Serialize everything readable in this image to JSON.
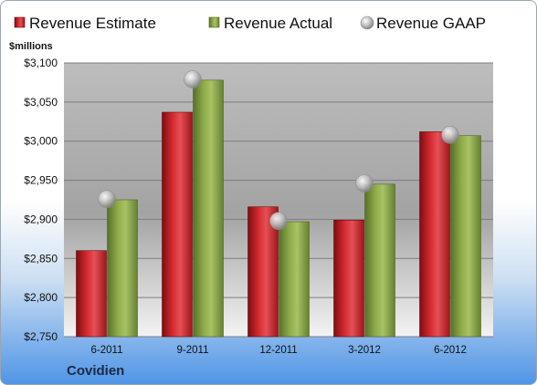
{
  "company": "Covidien",
  "chart_data": {
    "type": "bar",
    "ylabel": "$millions",
    "categories": [
      "6-2011",
      "9-2011",
      "12-2011",
      "3-2012",
      "6-2012"
    ],
    "ylim": [
      2750,
      3100
    ],
    "ytick_step": 50,
    "ytick_labels": [
      "$2,750",
      "$2,800",
      "$2,850",
      "$2,900",
      "$2,950",
      "$3,000",
      "$3,050",
      "$3,100"
    ],
    "grid": true,
    "legend": "top",
    "series": [
      {
        "name": "Revenue Estimate",
        "type": "bar",
        "color": "#d42a30",
        "values": [
          2860,
          3037,
          2916,
          2899,
          3012
        ]
      },
      {
        "name": "Revenue Actual",
        "type": "bar",
        "color": "#8fac4a",
        "values": [
          2925,
          3078,
          2897,
          2945,
          3007
        ]
      },
      {
        "name": "Revenue GAAP",
        "type": "scatter",
        "color": "#b8b8b8",
        "values": [
          2926,
          3079,
          2898,
          2946,
          3008
        ]
      }
    ]
  }
}
